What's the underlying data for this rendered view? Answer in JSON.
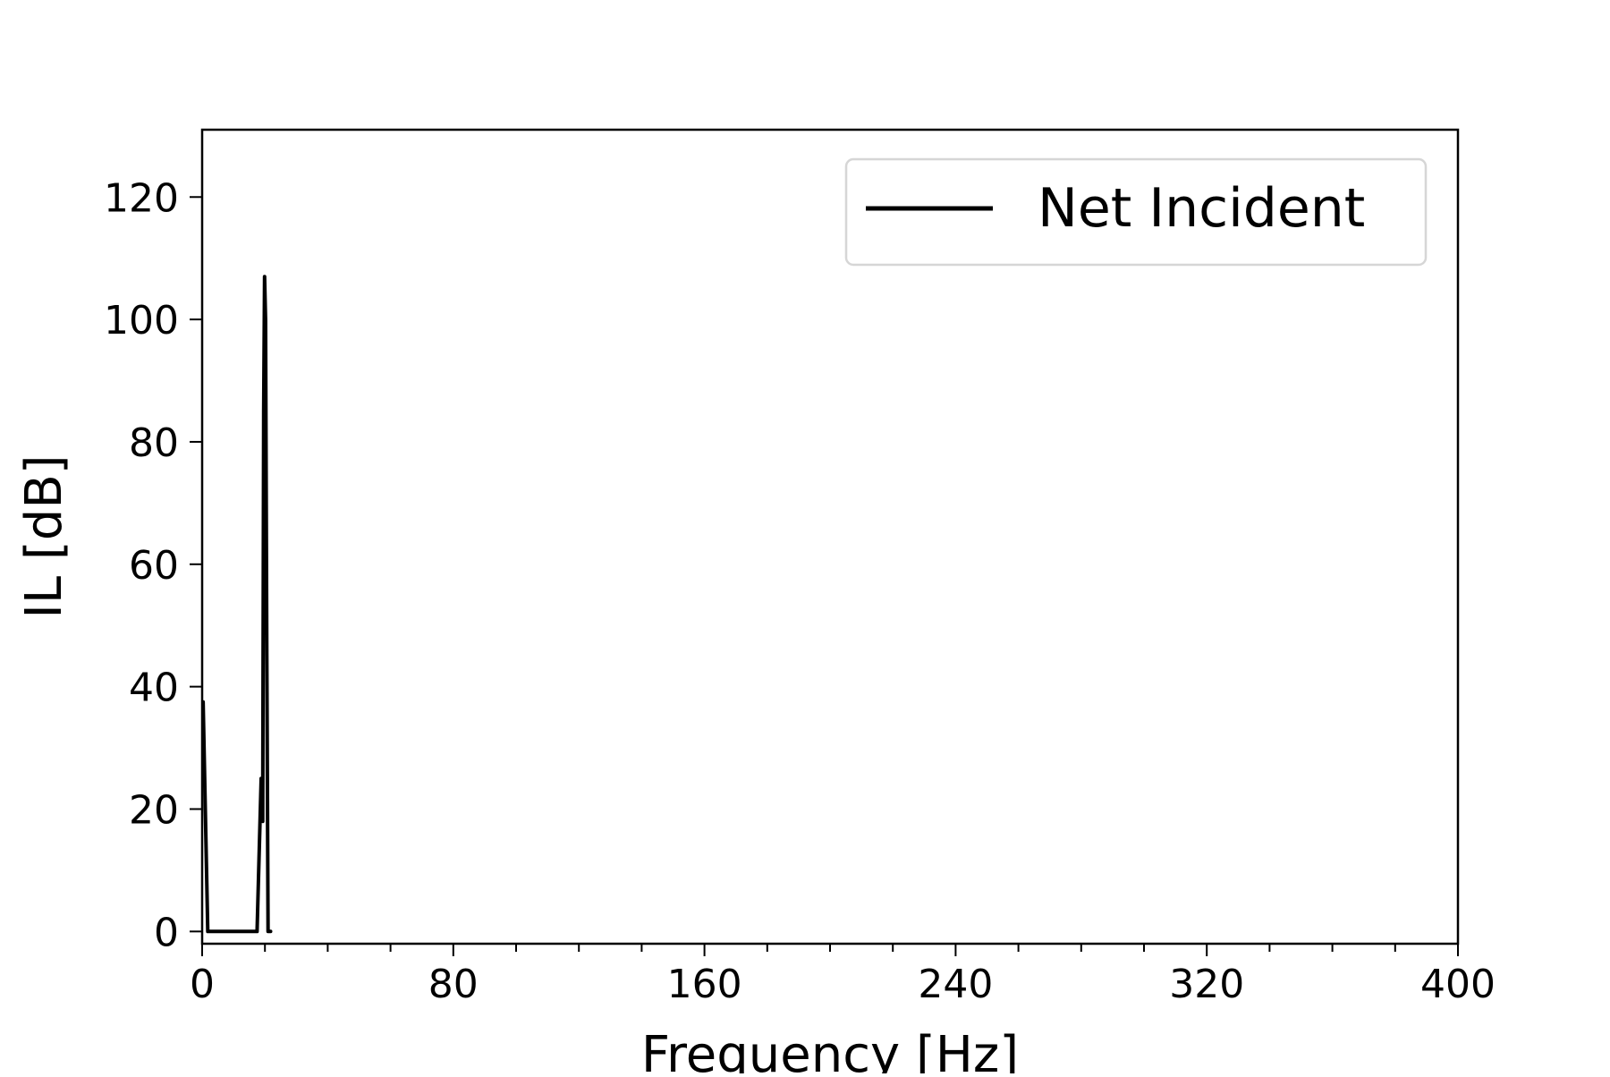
{
  "chart_data": {
    "type": "line",
    "xlabel": "Frequency [Hz]",
    "ylabel": "IL [dB]",
    "xlim": [
      0,
      400
    ],
    "ylim": [
      -2,
      131
    ],
    "x_ticks": [
      0,
      80,
      160,
      240,
      320,
      400
    ],
    "x_minor_step": 20,
    "y_ticks": [
      0,
      20,
      40,
      60,
      80,
      100,
      120
    ],
    "grid": false,
    "legend_position": "top-right",
    "series": [
      {
        "name": "Net Incident",
        "color": "#000000",
        "x": [
          0.3,
          1.8,
          2.3,
          17.5,
          18.8,
          19.3,
          19.6,
          19.9,
          20.2,
          20.6,
          21.0,
          21.8
        ],
        "y": [
          37.5,
          0,
          0,
          0,
          25,
          18,
          85,
          107,
          100,
          45,
          0,
          0
        ]
      }
    ]
  }
}
